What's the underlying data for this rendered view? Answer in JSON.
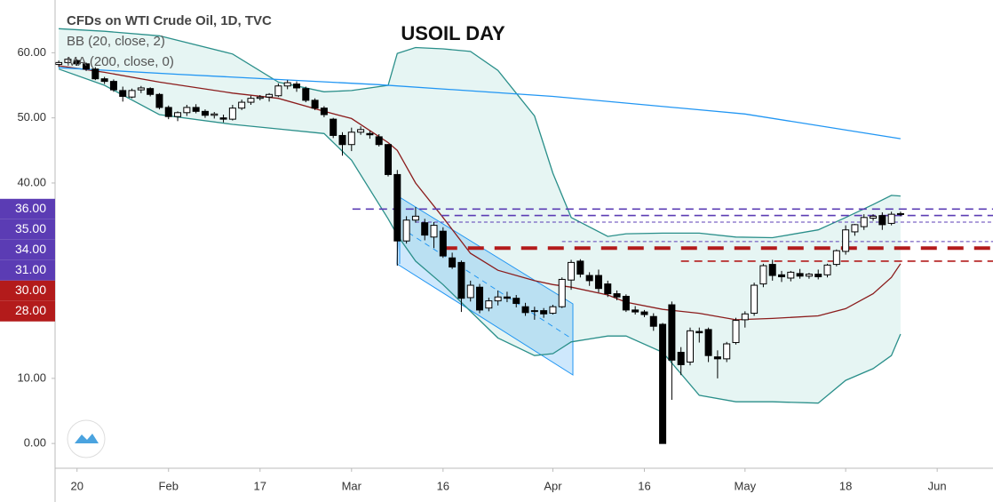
{
  "chart_data": {
    "type": "candlestick",
    "source": "CFDs on WTI Crude Oil, 1D, TVC",
    "title": "USOIL DAY",
    "xlim": [
      -0.4,
      102.1
    ],
    "ylim": [
      -3.8,
      68.1
    ],
    "xticks": [
      {
        "value": 2,
        "label": "20"
      },
      {
        "value": 12,
        "label": "Feb"
      },
      {
        "value": 22,
        "label": "17"
      },
      {
        "value": 32,
        "label": "Mar"
      },
      {
        "value": 42,
        "label": "16"
      },
      {
        "value": 54,
        "label": "Apr"
      },
      {
        "value": 64,
        "label": "16"
      },
      {
        "value": 75,
        "label": "May"
      },
      {
        "value": 86,
        "label": "18"
      },
      {
        "value": 96,
        "label": "Jun"
      }
    ],
    "yticks": [
      {
        "value": 0,
        "label": "0.00"
      },
      {
        "value": 10,
        "label": "10.00"
      },
      {
        "value": 40,
        "label": "40.00"
      },
      {
        "value": 50,
        "label": "50.00"
      },
      {
        "value": 60,
        "label": "60.00"
      }
    ],
    "up_color": "#ffffff",
    "down_color": "#000000",
    "candles": {
      "x": [
        0,
        1,
        2,
        3,
        4,
        5,
        6,
        7,
        8,
        9,
        10,
        11,
        12,
        13,
        14,
        15,
        16,
        17,
        18,
        19,
        20,
        21,
        22,
        23,
        24,
        25,
        26,
        27,
        28,
        29,
        30,
        31,
        32,
        33,
        34,
        35,
        36,
        37,
        38,
        39,
        40,
        41,
        42,
        43,
        44,
        45,
        46,
        47,
        48,
        49,
        50,
        51,
        52,
        53,
        54,
        55,
        56,
        57,
        58,
        59,
        60,
        61,
        62,
        63,
        64,
        65,
        66,
        67,
        68,
        69,
        70,
        71,
        72,
        73,
        74,
        75,
        76,
        77,
        78,
        79,
        80,
        81,
        82,
        83,
        84,
        85,
        86,
        87,
        88,
        89,
        90,
        91,
        92
      ],
      "ohlc": [
        [
          58.2,
          58.8,
          57.8,
          58.5
        ],
        [
          58.5,
          59.2,
          58.3,
          59.0
        ],
        [
          58.8,
          59.0,
          58.0,
          58.3
        ],
        [
          58.3,
          58.5,
          57.2,
          57.5
        ],
        [
          57.5,
          57.8,
          55.8,
          56.0
        ],
        [
          56.0,
          56.3,
          55.2,
          55.6
        ],
        [
          55.6,
          55.9,
          54.0,
          54.3
        ],
        [
          54.2,
          54.8,
          52.5,
          53.3
        ],
        [
          53.2,
          54.5,
          53.0,
          54.2
        ],
        [
          54.3,
          54.9,
          53.8,
          54.6
        ],
        [
          54.5,
          54.7,
          53.3,
          53.6
        ],
        [
          53.6,
          53.8,
          51.3,
          51.6
        ],
        [
          51.6,
          51.9,
          49.8,
          50.2
        ],
        [
          50.2,
          51.0,
          49.5,
          50.8
        ],
        [
          50.8,
          52.0,
          50.3,
          51.6
        ],
        [
          51.6,
          52.1,
          50.7,
          51.0
        ],
        [
          51.0,
          51.3,
          50.0,
          50.4
        ],
        [
          50.4,
          50.9,
          49.9,
          50.6
        ],
        [
          50.0,
          50.5,
          49.3,
          49.8
        ],
        [
          49.8,
          52.0,
          49.6,
          51.5
        ],
        [
          51.5,
          52.8,
          51.2,
          52.4
        ],
        [
          52.4,
          53.4,
          52.0,
          53.0
        ],
        [
          53.0,
          53.5,
          52.7,
          53.2
        ],
        [
          53.2,
          53.8,
          52.5,
          53.6
        ],
        [
          53.4,
          55.3,
          53.2,
          54.9
        ],
        [
          54.9,
          55.8,
          54.4,
          55.4
        ],
        [
          55.2,
          55.6,
          54.0,
          54.6
        ],
        [
          54.5,
          54.8,
          52.4,
          52.7
        ],
        [
          52.7,
          53.0,
          51.2,
          51.5
        ],
        [
          51.5,
          51.8,
          50.1,
          50.5
        ],
        [
          49.8,
          50.0,
          46.9,
          47.3
        ],
        [
          47.3,
          47.8,
          44.2,
          45.9
        ],
        [
          45.9,
          48.5,
          44.9,
          47.8
        ],
        [
          47.8,
          48.7,
          47.4,
          48.2
        ],
        [
          47.6,
          48.0,
          46.8,
          47.4
        ],
        [
          47.1,
          47.5,
          45.6,
          45.9
        ],
        [
          45.9,
          46.0,
          41.0,
          41.3
        ],
        [
          41.3,
          42.0,
          27.3,
          31.1
        ],
        [
          31.1,
          34.9,
          30.7,
          34.3
        ],
        [
          34.3,
          36.3,
          33.9,
          34.9
        ],
        [
          33.9,
          34.5,
          31.2,
          32.0
        ],
        [
          31.7,
          34.0,
          30.0,
          33.5
        ],
        [
          32.6,
          33.2,
          28.5,
          28.8
        ],
        [
          28.5,
          29.3,
          26.8,
          27.1
        ],
        [
          27.8,
          28.1,
          20.2,
          22.3
        ],
        [
          22.4,
          25.0,
          21.8,
          24.3
        ],
        [
          24.0,
          24.5,
          20.0,
          20.5
        ],
        [
          20.8,
          22.4,
          20.3,
          21.9
        ],
        [
          21.9,
          23.5,
          21.2,
          22.5
        ],
        [
          22.5,
          23.3,
          21.7,
          22.3
        ],
        [
          22.3,
          22.8,
          20.9,
          21.5
        ],
        [
          21.0,
          21.6,
          19.6,
          20.1
        ],
        [
          20.3,
          21.0,
          19.0,
          20.4
        ],
        [
          20.4,
          20.8,
          19.3,
          19.9
        ],
        [
          20.0,
          21.3,
          19.8,
          21.0
        ],
        [
          21.0,
          25.5,
          20.8,
          25.2
        ],
        [
          25.1,
          28.2,
          23.6,
          27.8
        ],
        [
          28.0,
          28.3,
          25.5,
          26.0
        ],
        [
          25.8,
          26.3,
          24.2,
          25.0
        ],
        [
          25.8,
          26.7,
          23.2,
          23.8
        ],
        [
          24.5,
          25.0,
          22.5,
          23.0
        ],
        [
          23.0,
          23.5,
          22.0,
          22.5
        ],
        [
          22.6,
          22.9,
          20.2,
          20.5
        ],
        [
          20.5,
          21.1,
          19.8,
          20.2
        ],
        [
          20.2,
          20.5,
          19.4,
          19.8
        ],
        [
          19.5,
          20.0,
          17.3,
          18.0
        ],
        [
          18.3,
          18.5,
          0,
          0
        ],
        [
          21.3,
          21.8,
          6.7,
          12.8
        ],
        [
          14.0,
          14.8,
          10.5,
          12.1
        ],
        [
          12.5,
          17.8,
          12.0,
          17.3
        ],
        [
          17.2,
          17.8,
          15.5,
          17.0
        ],
        [
          17.5,
          17.8,
          12.5,
          13.5
        ],
        [
          13.3,
          14.3,
          10.0,
          13.0
        ],
        [
          13.0,
          15.6,
          12.5,
          15.3
        ],
        [
          15.5,
          19.3,
          15.2,
          18.9
        ],
        [
          19.0,
          20.3,
          17.8,
          19.9
        ],
        [
          20.0,
          24.7,
          19.6,
          24.3
        ],
        [
          24.5,
          27.6,
          24.0,
          27.3
        ],
        [
          27.5,
          28.2,
          25.0,
          25.8
        ],
        [
          25.9,
          26.5,
          24.8,
          25.6
        ],
        [
          25.4,
          26.5,
          24.9,
          26.3
        ],
        [
          26.1,
          26.8,
          25.3,
          25.7
        ],
        [
          25.7,
          26.2,
          25.3,
          26.0
        ],
        [
          26.0,
          26.7,
          25.2,
          25.6
        ],
        [
          25.9,
          27.6,
          25.5,
          27.4
        ],
        [
          27.5,
          29.8,
          27.2,
          29.6
        ],
        [
          29.5,
          33.5,
          29.0,
          32.8
        ],
        [
          32.5,
          33.7,
          31.9,
          33.6
        ],
        [
          33.3,
          35.2,
          32.8,
          34.7
        ],
        [
          34.6,
          35.2,
          34.2,
          34.9
        ],
        [
          35.0,
          35.5,
          32.8,
          33.6
        ],
        [
          33.8,
          35.6,
          33.5,
          35.2
        ],
        [
          35.2,
          35.6,
          34.9,
          35.3
        ]
      ]
    },
    "bollinger": {
      "name": "BB (20, close, 2)",
      "band_color": "#2a8f8a",
      "basis_color": "#8b1c1c",
      "fill": "#e6f5f3",
      "x": [
        0,
        5,
        11,
        19,
        24,
        29,
        32,
        36,
        37,
        39,
        42,
        45,
        48,
        52,
        54,
        56,
        60,
        62,
        66,
        70,
        74,
        78,
        83,
        86,
        89,
        91,
        92
      ],
      "upper": [
        63.7,
        63.3,
        62.6,
        59.8,
        55.5,
        54.0,
        54.2,
        55.0,
        59.9,
        60.8,
        60.6,
        60.2,
        57.3,
        50.3,
        41.5,
        34.7,
        31.8,
        32.2,
        32.3,
        32.3,
        31.7,
        31.6,
        32.8,
        34.7,
        36.7,
        38.1,
        38.0
      ],
      "basis": [
        58.0,
        57.0,
        55.5,
        53.8,
        53.0,
        51.0,
        49.9,
        46.2,
        45.0,
        40.0,
        34.7,
        29.2,
        26.6,
        25.0,
        24.4,
        24.0,
        22.8,
        21.7,
        20.6,
        20.0,
        19.0,
        19.2,
        19.6,
        20.7,
        23.0,
        25.5,
        27.6
      ],
      "lower": [
        57.5,
        55.0,
        50.5,
        49.0,
        48.3,
        47.6,
        43.5,
        34.5,
        32.0,
        28.0,
        24.4,
        20.3,
        16.2,
        13.5,
        13.8,
        15.6,
        16.5,
        16.5,
        14.0,
        7.4,
        6.4,
        6.4,
        6.2,
        9.7,
        11.5,
        13.5,
        16.8
      ]
    },
    "moving_average": {
      "name": "MA (200, close, 0)",
      "color": "#2196f3",
      "x": [
        0,
        13,
        35,
        54,
        75,
        92
      ],
      "values": [
        57.7,
        56.7,
        55.1,
        53.3,
        50.6,
        46.8
      ]
    },
    "levels": [
      {
        "value": 36,
        "label": "36.00",
        "color": "#5b3cb4",
        "style": "medium",
        "x_start": 32.1
      },
      {
        "value": 35,
        "label": "35.00",
        "color": "#5b3cb4",
        "style": "medium",
        "x_start": 41.8
      },
      {
        "value": 34,
        "label": "34.00",
        "color": "#5b3cb4",
        "style": "thin",
        "x_start": 39
      },
      {
        "value": 31,
        "label": "31.00",
        "color": "#5b3cb4",
        "style": "thin",
        "x_start": 55
      },
      {
        "value": 30,
        "label": "30.00",
        "color": "#b31b1b",
        "style": "bold",
        "x_start": 41.8
      },
      {
        "value": 28,
        "label": "28.00",
        "color": "#b31b1b",
        "style": "medium",
        "x_start": 68
      }
    ]
  }
}
